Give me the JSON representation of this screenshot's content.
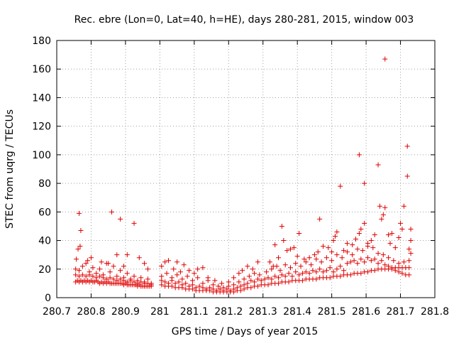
{
  "chart_data": {
    "type": "scatter",
    "title": "Rec. ebre (Lon=0, Lat=40, h=HE), days 280-281, 2015, window 003",
    "xlabel": "GPS time / Days of year 2015",
    "ylabel": "STEC from uqrg / TECUs",
    "xlim": [
      280.7,
      281.8
    ],
    "ylim": [
      0,
      180
    ],
    "x_ticks": [
      280.7,
      280.8,
      280.9,
      281,
      281.1,
      281.2,
      281.3,
      281.4,
      281.5,
      281.6,
      281.7,
      281.8
    ],
    "x_tick_labels": [
      "280.7",
      "280.8",
      "280.9",
      "281",
      "281.1",
      "281.2",
      "281.3",
      "281.4",
      "281.5",
      "281.6",
      "281.7",
      "281.8"
    ],
    "y_ticks": [
      0,
      20,
      40,
      60,
      80,
      100,
      120,
      140,
      160,
      180
    ],
    "y_tick_labels": [
      "0",
      "20",
      "40",
      "60",
      "80",
      "100",
      "120",
      "140",
      "160",
      "180"
    ],
    "grid": true,
    "marker": "plus",
    "color": "#e00000",
    "points": [
      [
        280.755,
        11
      ],
      [
        280.76,
        12
      ],
      [
        280.765,
        11
      ],
      [
        280.77,
        12
      ],
      [
        280.775,
        11
      ],
      [
        280.78,
        12
      ],
      [
        280.785,
        11
      ],
      [
        280.79,
        12
      ],
      [
        280.795,
        11
      ],
      [
        280.8,
        12
      ],
      [
        280.805,
        11
      ],
      [
        280.81,
        11
      ],
      [
        280.815,
        12
      ],
      [
        280.82,
        11
      ],
      [
        280.825,
        10
      ],
      [
        280.83,
        11
      ],
      [
        280.835,
        10
      ],
      [
        280.84,
        11
      ],
      [
        280.845,
        10
      ],
      [
        280.85,
        11
      ],
      [
        280.855,
        10
      ],
      [
        280.86,
        10
      ],
      [
        280.865,
        10
      ],
      [
        280.87,
        10
      ],
      [
        280.875,
        10
      ],
      [
        280.88,
        10
      ],
      [
        280.885,
        10
      ],
      [
        280.89,
        10
      ],
      [
        280.895,
        9
      ],
      [
        280.9,
        10
      ],
      [
        280.905,
        9
      ],
      [
        280.91,
        9
      ],
      [
        280.915,
        9
      ],
      [
        280.92,
        9
      ],
      [
        280.925,
        9
      ],
      [
        280.93,
        9
      ],
      [
        280.935,
        8
      ],
      [
        280.94,
        9
      ],
      [
        280.945,
        8
      ],
      [
        280.95,
        8
      ],
      [
        280.955,
        8
      ],
      [
        280.96,
        8
      ],
      [
        280.965,
        8
      ],
      [
        280.97,
        8
      ],
      [
        280.975,
        8
      ],
      [
        280.755,
        16
      ],
      [
        280.765,
        15
      ],
      [
        280.775,
        16
      ],
      [
        280.785,
        15
      ],
      [
        280.795,
        16
      ],
      [
        280.805,
        15
      ],
      [
        280.815,
        14
      ],
      [
        280.825,
        15
      ],
      [
        280.835,
        14
      ],
      [
        280.845,
        13
      ],
      [
        280.855,
        14
      ],
      [
        280.865,
        13
      ],
      [
        280.875,
        12
      ],
      [
        280.885,
        13
      ],
      [
        280.895,
        12
      ],
      [
        280.905,
        11
      ],
      [
        280.915,
        12
      ],
      [
        280.925,
        11
      ],
      [
        280.935,
        10
      ],
      [
        280.945,
        11
      ],
      [
        280.955,
        10
      ],
      [
        280.965,
        10
      ],
      [
        280.975,
        9
      ],
      [
        280.755,
        20
      ],
      [
        280.765,
        19
      ],
      [
        280.775,
        22
      ],
      [
        280.785,
        24
      ],
      [
        280.795,
        18
      ],
      [
        280.805,
        21
      ],
      [
        280.815,
        17
      ],
      [
        280.825,
        20
      ],
      [
        280.835,
        16
      ],
      [
        280.845,
        24
      ],
      [
        280.855,
        18
      ],
      [
        280.865,
        22
      ],
      [
        280.875,
        15
      ],
      [
        280.885,
        19
      ],
      [
        280.895,
        14
      ],
      [
        280.905,
        17
      ],
      [
        280.915,
        13
      ],
      [
        280.925,
        15
      ],
      [
        280.935,
        12
      ],
      [
        280.945,
        14
      ],
      [
        280.955,
        11
      ],
      [
        280.965,
        13
      ],
      [
        280.975,
        10
      ],
      [
        280.757,
        27
      ],
      [
        280.762,
        34
      ],
      [
        280.768,
        36
      ],
      [
        280.77,
        47
      ],
      [
        280.765,
        59
      ],
      [
        280.79,
        26
      ],
      [
        280.8,
        28
      ],
      [
        280.83,
        25
      ],
      [
        280.85,
        24
      ],
      [
        280.86,
        60
      ],
      [
        280.875,
        30
      ],
      [
        280.885,
        55
      ],
      [
        280.895,
        22
      ],
      [
        280.905,
        30
      ],
      [
        280.925,
        52
      ],
      [
        280.94,
        28
      ],
      [
        280.955,
        24
      ],
      [
        280.965,
        20
      ],
      [
        281.005,
        9
      ],
      [
        281.015,
        8
      ],
      [
        281.025,
        8
      ],
      [
        281.035,
        8
      ],
      [
        281.045,
        7
      ],
      [
        281.055,
        7
      ],
      [
        281.065,
        7
      ],
      [
        281.075,
        6
      ],
      [
        281.085,
        6
      ],
      [
        281.095,
        6
      ],
      [
        281.105,
        5
      ],
      [
        281.115,
        5
      ],
      [
        281.125,
        5
      ],
      [
        281.135,
        5
      ],
      [
        281.145,
        5
      ],
      [
        281.155,
        4
      ],
      [
        281.165,
        4
      ],
      [
        281.175,
        4
      ],
      [
        281.185,
        4
      ],
      [
        281.195,
        4
      ],
      [
        281.205,
        4
      ],
      [
        281.215,
        4
      ],
      [
        281.225,
        5
      ],
      [
        281.235,
        5
      ],
      [
        281.245,
        6
      ],
      [
        281.255,
        7
      ],
      [
        281.265,
        7
      ],
      [
        281.275,
        8
      ],
      [
        281.285,
        8
      ],
      [
        281.295,
        9
      ],
      [
        281.005,
        12
      ],
      [
        281.015,
        11
      ],
      [
        281.025,
        10
      ],
      [
        281.035,
        12
      ],
      [
        281.045,
        10
      ],
      [
        281.055,
        11
      ],
      [
        281.065,
        9
      ],
      [
        281.075,
        10
      ],
      [
        281.085,
        8
      ],
      [
        281.095,
        9
      ],
      [
        281.105,
        7
      ],
      [
        281.115,
        8
      ],
      [
        281.125,
        7
      ],
      [
        281.135,
        6
      ],
      [
        281.145,
        7
      ],
      [
        281.155,
        6
      ],
      [
        281.165,
        5
      ],
      [
        281.175,
        6
      ],
      [
        281.185,
        5
      ],
      [
        281.195,
        6
      ],
      [
        281.205,
        5
      ],
      [
        281.215,
        6
      ],
      [
        281.225,
        7
      ],
      [
        281.235,
        8
      ],
      [
        281.245,
        9
      ],
      [
        281.255,
        10
      ],
      [
        281.265,
        12
      ],
      [
        281.275,
        11
      ],
      [
        281.285,
        13
      ],
      [
        281.295,
        12
      ],
      [
        281.005,
        15
      ],
      [
        281.02,
        17
      ],
      [
        281.035,
        14
      ],
      [
        281.05,
        16
      ],
      [
        281.065,
        13
      ],
      [
        281.08,
        15
      ],
      [
        281.095,
        12
      ],
      [
        281.11,
        14
      ],
      [
        281.125,
        10
      ],
      [
        281.14,
        12
      ],
      [
        281.155,
        9
      ],
      [
        281.17,
        8
      ],
      [
        281.185,
        7
      ],
      [
        281.2,
        8
      ],
      [
        281.215,
        9
      ],
      [
        281.23,
        11
      ],
      [
        281.245,
        13
      ],
      [
        281.26,
        15
      ],
      [
        281.275,
        17
      ],
      [
        281.29,
        16
      ],
      [
        281.005,
        22
      ],
      [
        281.015,
        25
      ],
      [
        281.025,
        26
      ],
      [
        281.04,
        20
      ],
      [
        281.05,
        25
      ],
      [
        281.06,
        18
      ],
      [
        281.07,
        23
      ],
      [
        281.085,
        19
      ],
      [
        281.1,
        17
      ],
      [
        281.11,
        20
      ],
      [
        281.125,
        21
      ],
      [
        281.14,
        14
      ],
      [
        281.16,
        12
      ],
      [
        281.18,
        10
      ],
      [
        281.2,
        11
      ],
      [
        281.215,
        14
      ],
      [
        281.23,
        17
      ],
      [
        281.24,
        19
      ],
      [
        281.255,
        22
      ],
      [
        281.27,
        20
      ],
      [
        281.285,
        25
      ],
      [
        281.305,
        9
      ],
      [
        281.315,
        9
      ],
      [
        281.325,
        10
      ],
      [
        281.335,
        10
      ],
      [
        281.345,
        10
      ],
      [
        281.355,
        11
      ],
      [
        281.365,
        11
      ],
      [
        281.375,
        11
      ],
      [
        281.385,
        12
      ],
      [
        281.395,
        12
      ],
      [
        281.405,
        12
      ],
      [
        281.415,
        12
      ],
      [
        281.425,
        13
      ],
      [
        281.435,
        13
      ],
      [
        281.445,
        13
      ],
      [
        281.455,
        13
      ],
      [
        281.465,
        14
      ],
      [
        281.475,
        14
      ],
      [
        281.485,
        14
      ],
      [
        281.495,
        14
      ],
      [
        281.505,
        15
      ],
      [
        281.515,
        15
      ],
      [
        281.525,
        15
      ],
      [
        281.535,
        16
      ],
      [
        281.545,
        16
      ],
      [
        281.555,
        16
      ],
      [
        281.565,
        17
      ],
      [
        281.575,
        17
      ],
      [
        281.585,
        17
      ],
      [
        281.595,
        18
      ],
      [
        281.605,
        18
      ],
      [
        281.615,
        19
      ],
      [
        281.625,
        19
      ],
      [
        281.635,
        20
      ],
      [
        281.645,
        20
      ],
      [
        281.655,
        20
      ],
      [
        281.665,
        20
      ],
      [
        281.675,
        21
      ],
      [
        281.685,
        21
      ],
      [
        281.695,
        21
      ],
      [
        281.705,
        21
      ],
      [
        281.715,
        21
      ],
      [
        281.725,
        21
      ],
      [
        281.305,
        13
      ],
      [
        281.315,
        14
      ],
      [
        281.325,
        13
      ],
      [
        281.335,
        15
      ],
      [
        281.345,
        14
      ],
      [
        281.355,
        16
      ],
      [
        281.365,
        15
      ],
      [
        281.375,
        17
      ],
      [
        281.385,
        15
      ],
      [
        281.395,
        18
      ],
      [
        281.405,
        16
      ],
      [
        281.415,
        17
      ],
      [
        281.425,
        18
      ],
      [
        281.435,
        17
      ],
      [
        281.445,
        19
      ],
      [
        281.455,
        18
      ],
      [
        281.465,
        20
      ],
      [
        281.475,
        18
      ],
      [
        281.485,
        19
      ],
      [
        281.495,
        21
      ],
      [
        281.505,
        18
      ],
      [
        281.515,
        20
      ],
      [
        281.525,
        22
      ],
      [
        281.535,
        19
      ],
      [
        281.545,
        24
      ],
      [
        281.555,
        25
      ],
      [
        281.565,
        26
      ],
      [
        281.575,
        24
      ],
      [
        281.585,
        27
      ],
      [
        281.595,
        25
      ],
      [
        281.605,
        28
      ],
      [
        281.615,
        26
      ],
      [
        281.625,
        27
      ],
      [
        281.635,
        24
      ],
      [
        281.645,
        26
      ],
      [
        281.655,
        23
      ],
      [
        281.665,
        22
      ],
      [
        281.675,
        20
      ],
      [
        281.685,
        19
      ],
      [
        281.695,
        18
      ],
      [
        281.705,
        17
      ],
      [
        281.715,
        16
      ],
      [
        281.725,
        16
      ],
      [
        281.31,
        18
      ],
      [
        281.325,
        20
      ],
      [
        281.34,
        22
      ],
      [
        281.35,
        19
      ],
      [
        281.365,
        23
      ],
      [
        281.38,
        21
      ],
      [
        281.395,
        24
      ],
      [
        281.41,
        22
      ],
      [
        281.425,
        25
      ],
      [
        281.44,
        23
      ],
      [
        281.455,
        27
      ],
      [
        281.47,
        25
      ],
      [
        281.485,
        28
      ],
      [
        281.5,
        26
      ],
      [
        281.515,
        30
      ],
      [
        281.53,
        28
      ],
      [
        281.545,
        32
      ],
      [
        281.56,
        30
      ],
      [
        281.575,
        34
      ],
      [
        281.59,
        33
      ],
      [
        281.605,
        36
      ],
      [
        281.62,
        35
      ],
      [
        281.635,
        31
      ],
      [
        281.65,
        30
      ],
      [
        281.665,
        28
      ],
      [
        281.68,
        26
      ],
      [
        281.695,
        24
      ],
      [
        281.71,
        25
      ],
      [
        281.725,
        26
      ],
      [
        281.32,
        25
      ],
      [
        281.33,
        22
      ],
      [
        281.335,
        37
      ],
      [
        281.345,
        28
      ],
      [
        281.355,
        50
      ],
      [
        281.36,
        40
      ],
      [
        281.37,
        33
      ],
      [
        281.38,
        34
      ],
      [
        281.39,
        35
      ],
      [
        281.4,
        29
      ],
      [
        281.405,
        45
      ],
      [
        281.42,
        27
      ],
      [
        281.435,
        28
      ],
      [
        281.45,
        30
      ],
      [
        281.46,
        32
      ],
      [
        281.465,
        55
      ],
      [
        281.475,
        36
      ],
      [
        281.49,
        35
      ],
      [
        281.5,
        32
      ],
      [
        281.505,
        40
      ],
      [
        281.51,
        43
      ],
      [
        281.515,
        46
      ],
      [
        281.525,
        78
      ],
      [
        281.535,
        33
      ],
      [
        281.545,
        38
      ],
      [
        281.56,
        37
      ],
      [
        281.57,
        41
      ],
      [
        281.58,
        45
      ],
      [
        281.58,
        100
      ],
      [
        281.585,
        48
      ],
      [
        281.595,
        52
      ],
      [
        281.595,
        80
      ],
      [
        281.605,
        38
      ],
      [
        281.615,
        40
      ],
      [
        281.625,
        44
      ],
      [
        281.635,
        93
      ],
      [
        281.64,
        64
      ],
      [
        281.645,
        55
      ],
      [
        281.65,
        58
      ],
      [
        281.655,
        63
      ],
      [
        281.655,
        167
      ],
      [
        281.665,
        44
      ],
      [
        281.67,
        38
      ],
      [
        281.675,
        45
      ],
      [
        281.685,
        35
      ],
      [
        281.695,
        42
      ],
      [
        281.7,
        52
      ],
      [
        281.705,
        48
      ],
      [
        281.71,
        64
      ],
      [
        281.72,
        106
      ],
      [
        281.72,
        85
      ],
      [
        281.725,
        34
      ],
      [
        281.73,
        48
      ],
      [
        281.73,
        40
      ],
      [
        281.73,
        31
      ]
    ]
  }
}
